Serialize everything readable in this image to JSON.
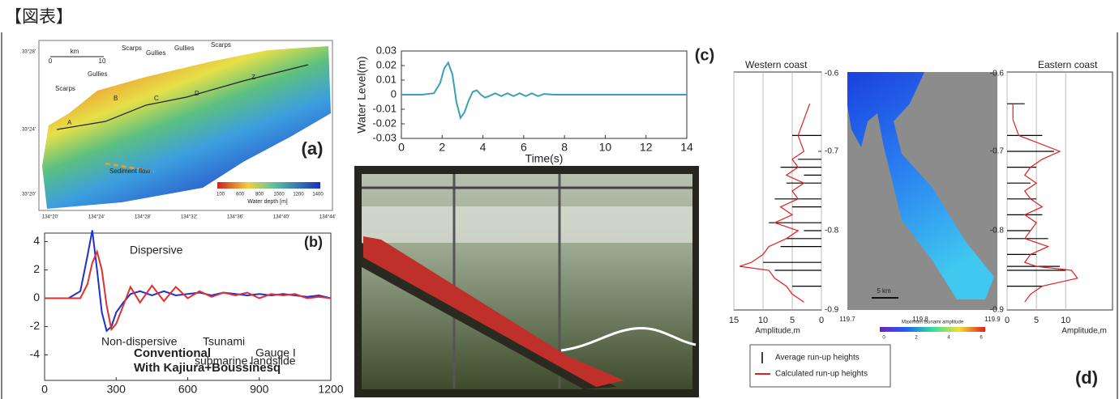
{
  "header": "【図表】",
  "panel_a": {
    "label": "(a)",
    "annotations": [
      "Scarps",
      "Gullies",
      "Scarps",
      "Gullies",
      "Gullies",
      "Scarps",
      "A",
      "B",
      "C",
      "D",
      "Z",
      "Sediment flow"
    ],
    "scale": [
      "km",
      "0",
      "10"
    ],
    "lat": [
      "33°28'",
      "33°24'",
      "33°20'"
    ],
    "lon": [
      "134°20'",
      "134°24'",
      "134°28'",
      "134°32'",
      "134°36'",
      "134°40'",
      "134°44'"
    ],
    "colorbar_title": "Water depth [m]",
    "colorbar_ticks": [
      100,
      600,
      800,
      1000,
      1200,
      1400
    ]
  },
  "panel_d_map": {
    "label": "(d)",
    "lon": [
      "119.7",
      "119.8",
      "119.9"
    ],
    "scale": "5 km",
    "colorbar_title": "Maximum tsunami amplitude",
    "colorbar_ticks": [
      0,
      2,
      4,
      6
    ]
  },
  "chart_data": [
    {
      "type": "line",
      "annotations": [
        "Dispersive",
        "(b)",
        "Non-dispersive",
        "Tsunami",
        "Gauge I",
        "submarine landslide"
      ],
      "x": [
        0,
        100,
        150,
        180,
        200,
        220,
        240,
        260,
        280,
        300,
        330,
        360,
        400,
        450,
        500,
        550,
        600,
        650,
        700,
        750,
        800,
        850,
        900,
        950,
        1000,
        1050,
        1100,
        1150,
        1200
      ],
      "series": [
        {
          "name": "Conventional",
          "color": "#1f2fd0",
          "values": [
            0,
            0,
            0.5,
            3,
            4.8,
            2,
            -1,
            -2.3,
            -2,
            -1,
            -0.3,
            0.3,
            0.5,
            0.2,
            0.5,
            0.2,
            0.3,
            0.4,
            0.2,
            0.4,
            0.3,
            0.2,
            0.3,
            0.2,
            0.3,
            0.2,
            0.1,
            0.2,
            0
          ]
        },
        {
          "name": "With Kajiura+Boussinesq",
          "color": "#e03030",
          "values": [
            0,
            0,
            0,
            1,
            2.5,
            3.3,
            2,
            -0.5,
            -2.2,
            -1.8,
            -0.5,
            0.8,
            -0.3,
            0.9,
            -0.2,
            0.8,
            0,
            0.5,
            0.1,
            0.4,
            0.2,
            0.4,
            0,
            0.3,
            0.2,
            0.3,
            0,
            0.1,
            0
          ]
        }
      ],
      "xlim": [
        0,
        1200
      ],
      "xticks": [
        0,
        300,
        600,
        900,
        1200
      ],
      "ylim": [
        -5.8,
        4.6
      ],
      "yticks": [
        4,
        2,
        0,
        -2,
        -4
      ]
    },
    {
      "type": "line",
      "title": "(c)",
      "xlabel": "Time(s)",
      "ylabel": "Water Level(m)",
      "x": [
        0,
        1,
        1.6,
        1.9,
        2.1,
        2.3,
        2.5,
        2.7,
        2.9,
        3.1,
        3.3,
        3.5,
        3.7,
        3.9,
        4.1,
        4.3,
        4.6,
        4.9,
        5.2,
        5.5,
        5.8,
        6.1,
        6.4,
        6.7,
        7,
        7.5,
        8,
        9,
        10,
        12,
        14
      ],
      "series": [
        {
          "color": "#3aa0b8",
          "values": [
            0,
            0,
            0.001,
            0.008,
            0.018,
            0.022,
            0.014,
            -0.005,
            -0.016,
            -0.012,
            -0.004,
            0.002,
            0.003,
            0,
            -0.002,
            -0.001,
            0.001,
            -0.001,
            0.001,
            -0.001,
            0.001,
            -0.001,
            0.001,
            -0.001,
            0.0005,
            0,
            0,
            0,
            0,
            0,
            0
          ]
        }
      ],
      "xlim": [
        0,
        14
      ],
      "xticks": [
        0,
        2,
        4,
        6,
        8,
        10,
        12,
        14
      ],
      "ylim": [
        -0.03,
        0.03
      ],
      "yticks": [
        0.03,
        0.02,
        0.01,
        0,
        -0.01,
        -0.02,
        -0.03
      ]
    },
    {
      "type": "profile",
      "title": "Western coast",
      "xlabel": "Amplitude,m",
      "y": [
        -0.64,
        -0.66,
        -0.68,
        -0.7,
        -0.71,
        -0.72,
        -0.73,
        -0.74,
        -0.75,
        -0.76,
        -0.77,
        -0.78,
        -0.79,
        -0.8,
        -0.81,
        -0.82,
        -0.83,
        -0.84,
        -0.845,
        -0.85,
        -0.86,
        -0.87,
        -0.88,
        -0.89
      ],
      "ylim": [
        -0.9,
        -0.6
      ],
      "yticks": [
        -0.6,
        -0.7,
        -0.8,
        -0.9
      ],
      "xlim": [
        15,
        0
      ],
      "xticks": [
        15,
        10,
        5,
        0
      ],
      "legend": "bottom-left",
      "series": [
        {
          "name": "Average run-up heights",
          "color": "#000000",
          "style": "bars",
          "values": [
            null,
            null,
            5,
            null,
            4,
            7,
            3,
            6,
            null,
            8,
            5,
            null,
            9,
            3,
            6,
            7,
            null,
            10,
            null,
            8,
            null,
            5,
            null,
            null
          ]
        },
        {
          "name": "Calculated run-up heights",
          "color": "#e02020",
          "style": "line",
          "values": [
            2,
            3,
            4,
            3,
            5,
            4,
            6,
            3,
            5,
            4,
            7,
            5,
            8,
            4,
            6,
            9,
            10,
            12,
            14,
            9,
            8,
            6,
            5,
            3
          ]
        }
      ]
    },
    {
      "type": "profile",
      "title": "Eastern coast",
      "xlabel": "Amplitude,m",
      "y": [
        -0.64,
        -0.66,
        -0.68,
        -0.7,
        -0.71,
        -0.72,
        -0.73,
        -0.74,
        -0.75,
        -0.76,
        -0.77,
        -0.78,
        -0.79,
        -0.8,
        -0.81,
        -0.82,
        -0.83,
        -0.84,
        -0.845,
        -0.85,
        -0.86,
        -0.87,
        -0.88,
        -0.89
      ],
      "ylim": [
        -0.9,
        -0.6
      ],
      "yticks": [
        -0.6,
        -0.7,
        -0.8,
        -0.9
      ],
      "xlim": [
        0,
        18
      ],
      "xticks": [
        0,
        5,
        10
      ],
      "series": [
        {
          "color": "#000000",
          "style": "bars",
          "values": [
            3,
            null,
            6,
            8,
            null,
            5,
            null,
            4,
            null,
            5,
            null,
            6,
            null,
            4,
            7,
            null,
            5,
            null,
            9,
            10,
            null,
            6,
            null,
            null
          ]
        },
        {
          "color": "#e02020",
          "style": "line",
          "values": [
            1,
            1,
            2,
            9,
            6,
            4,
            3,
            5,
            3,
            4,
            6,
            3,
            5,
            4,
            3,
            7,
            4,
            3,
            5,
            11,
            12,
            6,
            4,
            3
          ]
        }
      ]
    }
  ]
}
